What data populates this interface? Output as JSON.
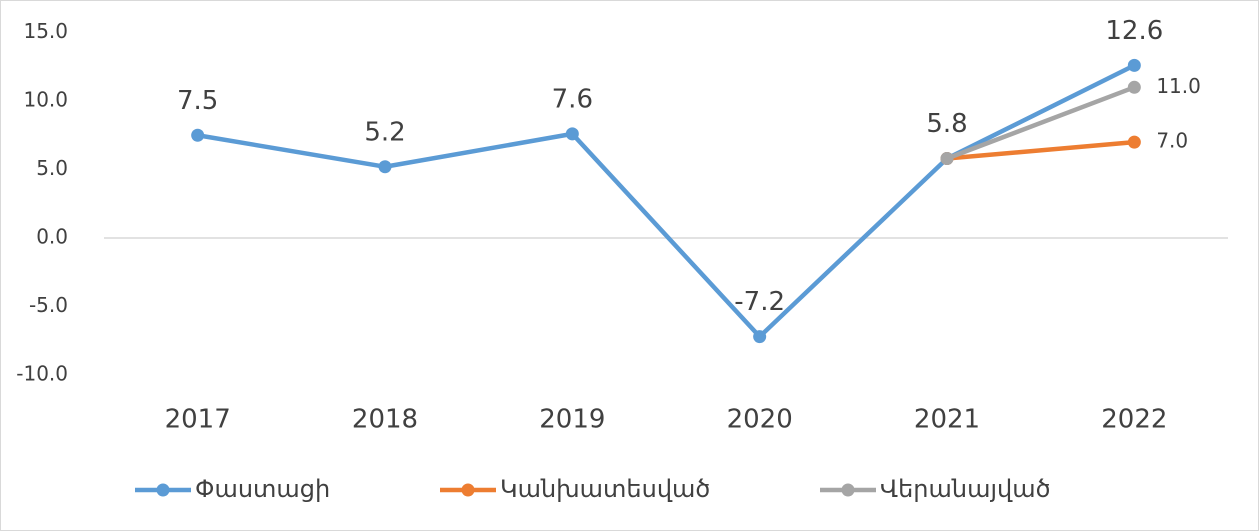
{
  "chart_data": {
    "type": "line",
    "categories": [
      "2017",
      "2018",
      "2019",
      "2020",
      "2021",
      "2022"
    ],
    "series": [
      {
        "name": "Փաստացի",
        "color": "#5b9bd5",
        "values": [
          7.5,
          5.2,
          7.6,
          -7.2,
          5.8,
          12.6
        ]
      },
      {
        "name": "Կանխատեսված",
        "color": "#ed7d31",
        "values": [
          null,
          null,
          null,
          null,
          5.8,
          7.0
        ],
        "value_labels": [
          null,
          null,
          null,
          null,
          null,
          "7.0"
        ]
      },
      {
        "name": "Վերանայված",
        "color": "#a5a5a5",
        "values": [
          null,
          null,
          null,
          null,
          5.8,
          11.0
        ],
        "value_labels": [
          null,
          null,
          null,
          null,
          null,
          "11.0"
        ]
      }
    ],
    "ylim": [
      -10,
      15
    ],
    "yticks": [
      {
        "value": -10,
        "label": "-10.0"
      },
      {
        "value": -5,
        "label": "-5.0"
      },
      {
        "value": 0,
        "label": "0.0"
      },
      {
        "value": 5,
        "label": "5.0"
      },
      {
        "value": 10,
        "label": "10.0"
      },
      {
        "value": 15,
        "label": "15.0"
      }
    ],
    "grid": false,
    "legend": "bottom"
  }
}
